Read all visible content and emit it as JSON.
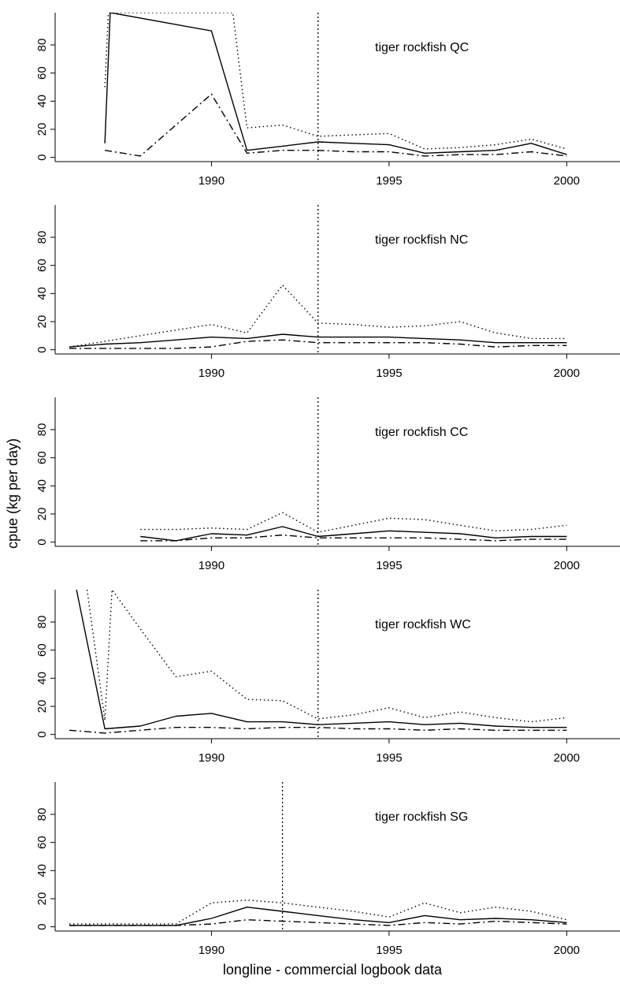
{
  "ylabel": "cpue (kg per day)",
  "xlabel": "longline - commercial logbook data",
  "chart_data": [
    {
      "type": "line",
      "title": "tiger rockfish QC",
      "xlim": [
        1985.6,
        2001.5
      ],
      "ylim": [
        -3,
        103
      ],
      "x_ticks": [
        1990,
        1995,
        2000
      ],
      "y_ticks": [
        0,
        20,
        40,
        60,
        80
      ],
      "reference_year": 1993,
      "series": [
        {
          "style": "solid",
          "x": [
            1987,
            1987.15,
            1990,
            1991,
            1992,
            1993,
            1994,
            1995,
            1996,
            1997,
            1998,
            1999,
            2000
          ],
          "y": [
            10,
            103,
            90,
            5,
            8,
            11,
            10,
            9,
            3,
            4,
            5,
            10,
            2
          ]
        },
        {
          "style": "dotted",
          "x": [
            1987,
            1987.1,
            1990.2,
            1990.6,
            1991,
            1992,
            1993,
            1994,
            1995,
            1996,
            1997,
            1998,
            1999,
            2000
          ],
          "y": [
            50,
            103,
            103,
            103,
            21,
            23,
            15,
            16,
            17,
            6,
            7,
            9,
            13,
            6
          ]
        },
        {
          "style": "dashdot",
          "x": [
            1987,
            1988,
            1989,
            1990,
            1991,
            1992,
            1993,
            1994,
            1995,
            1996,
            1997,
            1998,
            1999,
            2000
          ],
          "y": [
            5,
            1,
            23,
            45,
            3,
            5,
            5,
            4,
            4,
            1,
            2,
            2,
            4,
            1
          ]
        }
      ]
    },
    {
      "type": "line",
      "title": "tiger rockfish NC",
      "xlim": [
        1985.6,
        2001.5
      ],
      "ylim": [
        -3,
        103
      ],
      "x_ticks": [
        1990,
        1995,
        2000
      ],
      "y_ticks": [
        0,
        20,
        40,
        60,
        80
      ],
      "reference_year": 1993,
      "series": [
        {
          "style": "solid",
          "x": [
            1986,
            1987,
            1988,
            1989,
            1990,
            1991,
            1992,
            1993,
            1994,
            1995,
            1996,
            1997,
            1998,
            1999,
            2000
          ],
          "y": [
            2,
            4,
            5,
            7,
            9,
            8,
            11,
            9,
            9,
            9,
            8,
            7,
            5,
            5,
            5
          ]
        },
        {
          "style": "dotted",
          "x": [
            1986,
            1987,
            1988,
            1989,
            1990,
            1991,
            1992,
            1993,
            1994,
            1995,
            1996,
            1997,
            1998,
            1999,
            2000
          ],
          "y": [
            2,
            6,
            10,
            14,
            18,
            12,
            46,
            19,
            18,
            16,
            17,
            20,
            12,
            8,
            8
          ]
        },
        {
          "style": "dashdot",
          "x": [
            1986,
            1987,
            1988,
            1989,
            1990,
            1991,
            1992,
            1993,
            1994,
            1995,
            1996,
            1997,
            1998,
            1999,
            2000
          ],
          "y": [
            1,
            1,
            1,
            1,
            2,
            6,
            7,
            5,
            5,
            5,
            5,
            4,
            2,
            3,
            3
          ]
        }
      ]
    },
    {
      "type": "line",
      "title": "tiger rockfish CC",
      "xlim": [
        1985.6,
        2001.5
      ],
      "ylim": [
        -3,
        103
      ],
      "x_ticks": [
        1990,
        1995,
        2000
      ],
      "y_ticks": [
        0,
        20,
        40,
        60,
        80
      ],
      "reference_year": 1993,
      "series": [
        {
          "style": "solid",
          "x": [
            1988,
            1989,
            1990,
            1991,
            1992,
            1993,
            1994,
            1995,
            1996,
            1997,
            1998,
            1999,
            2000
          ],
          "y": [
            4,
            1,
            6,
            5,
            11,
            4,
            6,
            8,
            7,
            6,
            3,
            4,
            4
          ]
        },
        {
          "style": "dotted",
          "x": [
            1988,
            1989,
            1990,
            1991,
            1992,
            1993,
            1994,
            1995,
            1996,
            1997,
            1998,
            1999,
            2000
          ],
          "y": [
            9,
            9,
            10,
            9,
            21,
            7,
            12,
            17,
            16,
            12,
            8,
            9,
            12
          ]
        },
        {
          "style": "dashdot",
          "x": [
            1988,
            1989,
            1990,
            1991,
            1992,
            1993,
            1994,
            1995,
            1996,
            1997,
            1998,
            1999,
            2000
          ],
          "y": [
            1,
            1,
            3,
            3,
            5,
            3,
            3,
            3,
            3,
            2,
            1,
            2,
            2
          ]
        }
      ]
    },
    {
      "type": "line",
      "title": "tiger rockfish WC",
      "xlim": [
        1985.6,
        2001.5
      ],
      "ylim": [
        -3,
        103
      ],
      "x_ticks": [
        1990,
        1995,
        2000
      ],
      "y_ticks": [
        0,
        20,
        40,
        60,
        80
      ],
      "reference_year": 1993,
      "series": [
        {
          "style": "solid",
          "x": [
            1986.2,
            1987,
            1988,
            1989,
            1990,
            1991,
            1992,
            1993,
            1994,
            1995,
            1996,
            1997,
            1998,
            1999,
            2000
          ],
          "y": [
            103,
            4,
            6,
            13,
            15,
            9,
            9,
            7,
            8,
            9,
            7,
            8,
            6,
            5,
            5
          ]
        },
        {
          "style": "dotted",
          "x": [
            1986.5,
            1987,
            1987.2,
            1988,
            1989,
            1990,
            1991,
            1992,
            1993,
            1994,
            1995,
            1996,
            1997,
            1998,
            1999,
            2000
          ],
          "y": [
            103,
            10,
            103,
            75,
            41,
            45,
            25,
            24,
            11,
            14,
            19,
            12,
            16,
            12,
            9,
            12
          ]
        },
        {
          "style": "dashdot",
          "x": [
            1986,
            1987,
            1988,
            1989,
            1990,
            1991,
            1992,
            1993,
            1994,
            1995,
            1996,
            1997,
            1998,
            1999,
            2000
          ],
          "y": [
            3,
            1,
            3,
            5,
            5,
            4,
            5,
            5,
            4,
            4,
            3,
            4,
            3,
            3,
            3
          ]
        }
      ]
    },
    {
      "type": "line",
      "title": "tiger rockfish SG",
      "xlim": [
        1985.6,
        2001.5
      ],
      "ylim": [
        -3,
        103
      ],
      "x_ticks": [
        1990,
        1995,
        2000
      ],
      "y_ticks": [
        0,
        20,
        40,
        60,
        80
      ],
      "reference_year": 1992,
      "series": [
        {
          "style": "solid",
          "x": [
            1986,
            1987,
            1988,
            1989,
            1990,
            1991,
            1992,
            1993,
            1994,
            1995,
            1996,
            1997,
            1998,
            1999,
            2000
          ],
          "y": [
            1,
            1,
            1,
            1,
            6,
            14,
            11,
            8,
            5,
            3,
            8,
            5,
            6,
            5,
            3
          ]
        },
        {
          "style": "dotted",
          "x": [
            1986,
            1987,
            1988,
            1989,
            1990,
            1991,
            1992,
            1993,
            1994,
            1995,
            1996,
            1997,
            1998,
            1999,
            2000
          ],
          "y": [
            2,
            2,
            2,
            2,
            17,
            19,
            17,
            14,
            11,
            7,
            17,
            10,
            14,
            11,
            5
          ]
        },
        {
          "style": "dashdot",
          "x": [
            1986,
            1987,
            1988,
            1989,
            1990,
            1991,
            1992,
            1993,
            1994,
            1995,
            1996,
            1997,
            1998,
            1999,
            2000
          ],
          "y": [
            1,
            1,
            1,
            1,
            2,
            5,
            4,
            3,
            2,
            1,
            3,
            2,
            4,
            3,
            2
          ]
        }
      ]
    }
  ]
}
